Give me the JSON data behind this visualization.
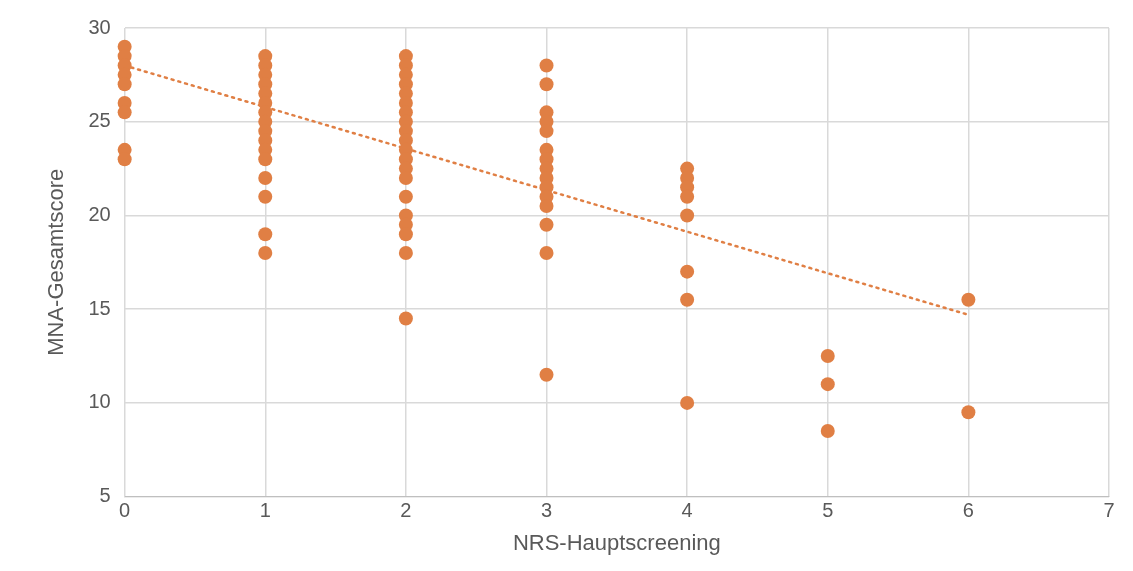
{
  "chart_data": {
    "type": "scatter",
    "xlabel": "NRS-Hauptscreening",
    "ylabel": "MNA-Gesamtscore",
    "xlim": [
      0,
      7
    ],
    "xticks": [
      0,
      1,
      2,
      3,
      4,
      5,
      6,
      7
    ],
    "ylim": [
      5,
      30
    ],
    "yticks": [
      5,
      10,
      15,
      20,
      25,
      30
    ],
    "grid": true,
    "legend": false,
    "marker": "circle",
    "series": [
      {
        "color": "#e07f44",
        "x": [
          0,
          0,
          0,
          0,
          0,
          0,
          0,
          0,
          0,
          1,
          1,
          1,
          1,
          1,
          1,
          1,
          1,
          1,
          1,
          1,
          1,
          1,
          1,
          1,
          1,
          2,
          2,
          2,
          2,
          2,
          2,
          2,
          2,
          2,
          2,
          2,
          2,
          2,
          2,
          2,
          2,
          2,
          2,
          2,
          2,
          3,
          3,
          3,
          3,
          3,
          3,
          3,
          3,
          3,
          3,
          3,
          3,
          3,
          3,
          3,
          4,
          4,
          4,
          4,
          4,
          4,
          4,
          4,
          5,
          5,
          5,
          6,
          6
        ],
        "values": [
          29,
          28.5,
          28,
          27.5,
          27,
          26,
          25.5,
          23.5,
          23,
          28.5,
          28,
          27.5,
          27,
          26.5,
          26,
          25.5,
          25,
          24.5,
          24,
          23.5,
          23,
          22,
          21,
          19,
          18,
          28.5,
          28,
          27.5,
          27,
          26.5,
          26,
          25.5,
          25,
          24.5,
          24,
          23.5,
          23,
          22.5,
          22,
          21,
          20,
          19.5,
          19,
          18,
          14.5,
          28,
          27,
          25.5,
          25,
          24.5,
          23.5,
          23,
          22.5,
          22,
          21.5,
          21,
          20.5,
          19.5,
          18,
          11.5,
          22.5,
          22,
          21.5,
          21,
          20,
          17,
          15.5,
          10,
          12.5,
          11,
          8.5,
          15.5,
          9.5
        ]
      },
      {
        "type": "line",
        "color": "#e07f44",
        "line_style": "dotted",
        "marker": "none",
        "x": [
          0,
          6
        ],
        "values": [
          28.0,
          14.7
        ]
      }
    ]
  }
}
